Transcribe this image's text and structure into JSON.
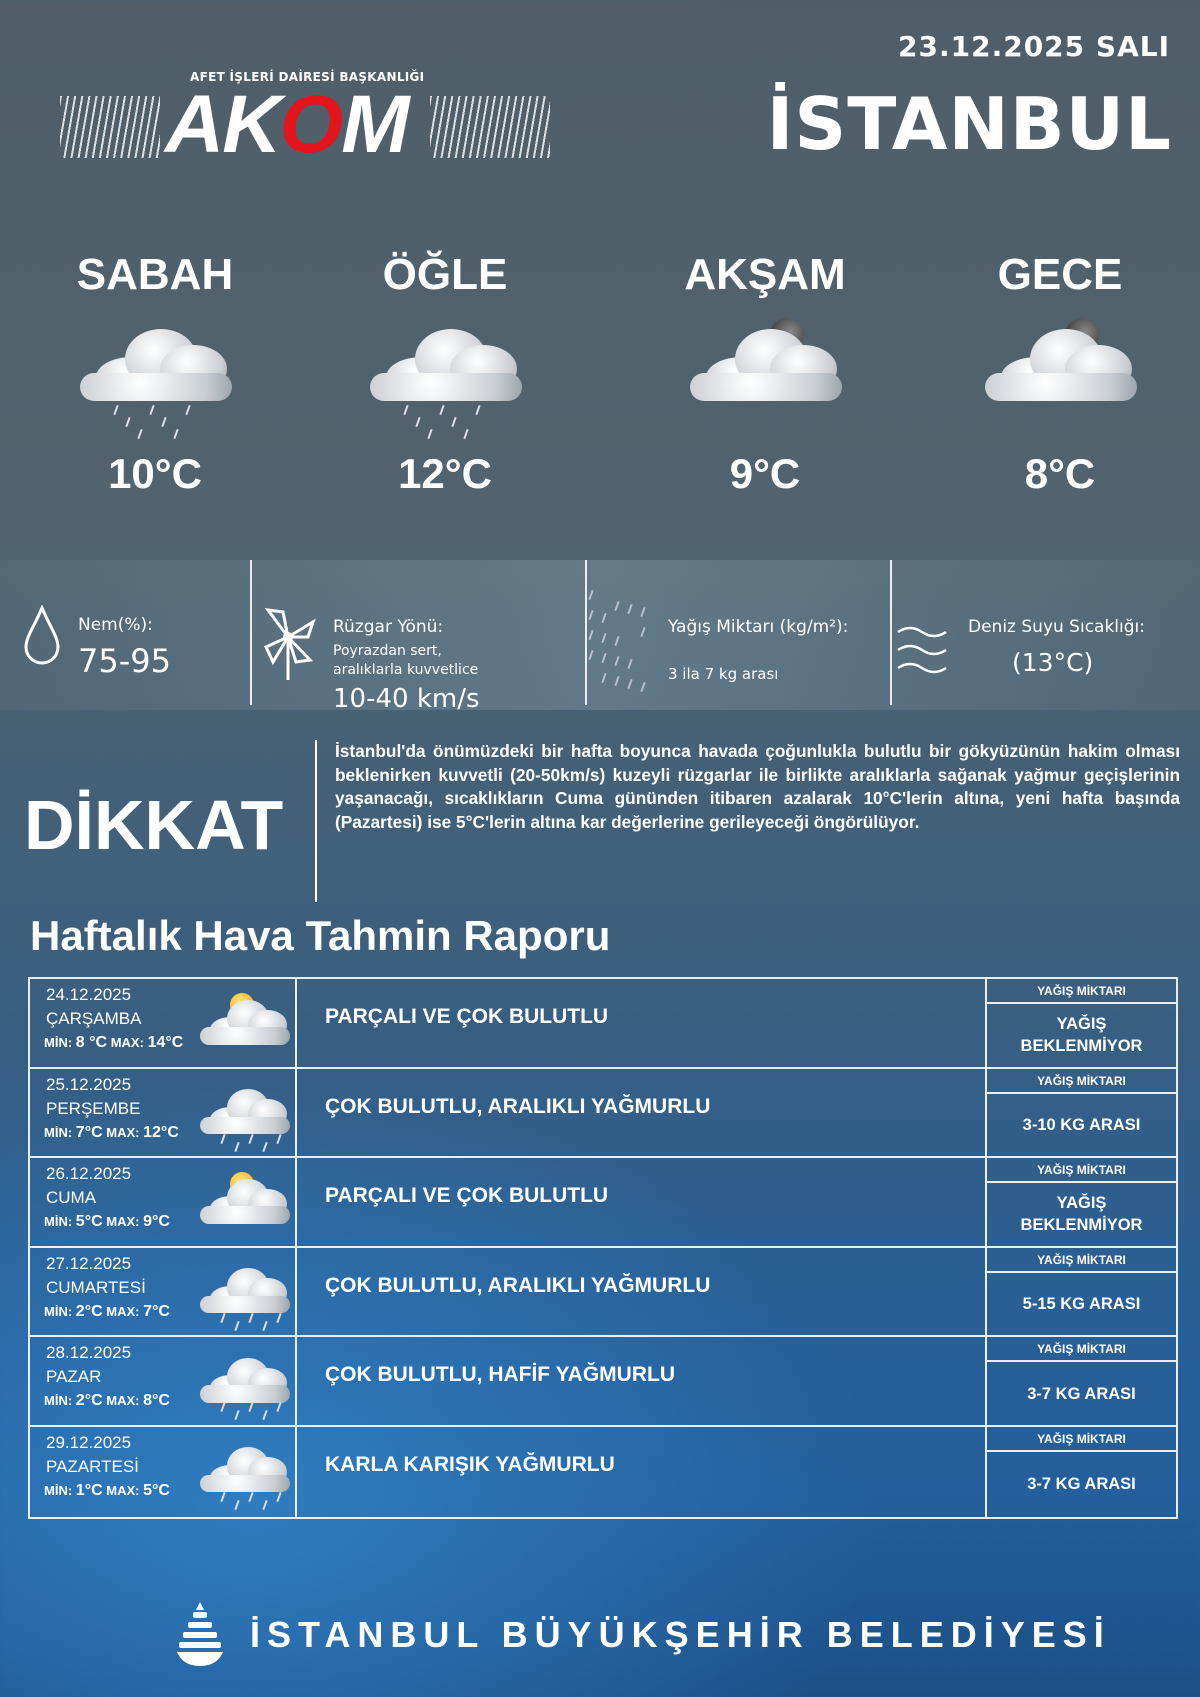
{
  "header": {
    "date": "23.12.2025 SALI",
    "city": "İSTANBUL",
    "logo_subtitle": "AFET İŞLERİ DAİRESİ BAŞKANLIĞI",
    "logo_text": "AKOM"
  },
  "periods": [
    {
      "name": "SABAH",
      "temp": "10°C",
      "icon": "cloud-rain-icon"
    },
    {
      "name": "ÖĞLE",
      "temp": "12°C",
      "icon": "cloud-rain-icon"
    },
    {
      "name": "AKŞAM",
      "temp": "9°C",
      "icon": "moon-cloud-icon"
    },
    {
      "name": "GECE",
      "temp": "8°C",
      "icon": "moon-cloud-icon"
    }
  ],
  "info": {
    "humidity": {
      "label": "Nem(%):",
      "value": "75-95"
    },
    "wind": {
      "label": "Rüzgar Yönü:",
      "desc1": "Poyrazdan sert,",
      "desc2": "aralıklarla kuvvetlice",
      "value": "10-40 km/s"
    },
    "precip": {
      "label": "Yağış Miktarı (kg/m²):",
      "value": "3 ila 7 kg arası"
    },
    "sea": {
      "label": "Deniz Suyu Sıcaklığı:",
      "value": "(13°C)"
    }
  },
  "warning": {
    "title": "DİKKAT",
    "text": "İstanbul'da önümüzdeki bir hafta boyunca havada çoğunlukla bulutlu bir gökyüzünün hakim olması beklenirken kuvvetli (20-50km/s) kuzeyli rüzgarlar ile birlikte aralıklarla sağanak yağmur geçişlerinin yaşanacağı, sıcaklıkların Cuma gününden itibaren azalarak 10°C'lerin altına, yeni hafta başında (Pazartesi) ise 5°C'lerin altına kar değerlerine gerileyeceği öngörülüyor."
  },
  "weekly": {
    "title": "Haftalık Hava Tahmin Raporu",
    "precip_header": "YAĞIŞ MİKTARI",
    "min_label": "MİN:",
    "max_label": "MAX:",
    "days": [
      {
        "date": "24.12.2025",
        "day": "ÇARŞAMBA",
        "min": "8 °C",
        "max": "14°C",
        "desc": "PARÇALI VE ÇOK BULUTLU",
        "precip": "YAĞIŞ BEKLENMİYOR",
        "icon": "sun-cloud-icon"
      },
      {
        "date": "25.12.2025",
        "day": "PERŞEMBE",
        "min": "7°C",
        "max": "12°C",
        "desc": "ÇOK BULUTLU, ARALIKLI YAĞMURLU",
        "precip": "3-10 KG ARASI",
        "icon": "cloud-rain-icon"
      },
      {
        "date": "26.12.2025",
        "day": "CUMA",
        "min": "5°C",
        "max": "9°C",
        "desc": "PARÇALI VE ÇOK BULUTLU",
        "precip": "YAĞIŞ BEKLENMİYOR",
        "icon": "sun-cloud-icon"
      },
      {
        "date": "27.12.2025",
        "day": "CUMARTESİ",
        "min": "2°C",
        "max": "7°C",
        "desc": "ÇOK BULUTLU, ARALIKLI YAĞMURLU",
        "precip": "5-15 KG ARASI",
        "icon": "cloud-rain-icon"
      },
      {
        "date": "28.12.2025",
        "day": "PAZAR",
        "min": "2°C",
        "max": "8°C",
        "desc": "ÇOK BULUTLU, HAFİF YAĞMURLU",
        "precip": "3-7 KG ARASI",
        "icon": "cloud-rain-icon"
      },
      {
        "date": "29.12.2025",
        "day": "PAZARTESİ",
        "min": "1°C",
        "max": "5°C",
        "desc": "KARLA KARIŞIK YAĞMURLU",
        "precip": "3-7 KG ARASI",
        "icon": "cloud-snow-icon"
      }
    ]
  },
  "footer": {
    "text": "İSTANBUL BÜYÜKŞEHİR BELEDİYESİ"
  }
}
